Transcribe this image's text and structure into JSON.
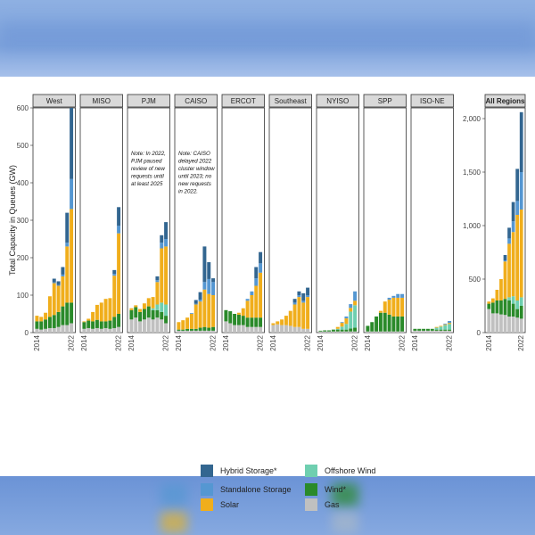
{
  "chart_data": {
    "type": "bar",
    "stacked": true,
    "ylabel": "Total Capacity in Queues (GW)",
    "x_ticks": [
      "2014",
      "2022"
    ],
    "years": [
      2014,
      2015,
      2016,
      2017,
      2018,
      2019,
      2020,
      2021,
      2022
    ],
    "ylim": [
      0,
      600
    ],
    "yticks": [
      0,
      100,
      200,
      300,
      400,
      500,
      600
    ],
    "ylim_all": [
      0,
      2100
    ],
    "yticks_all": [
      0,
      500,
      1000,
      1500,
      2000
    ],
    "ytick_labels_all": [
      "0",
      "500",
      "1,000",
      "1,500",
      "2,000"
    ],
    "series_names": [
      "Gas",
      "Wind*",
      "Offshore Wind",
      "Solar",
      "Standalone Storage",
      "Hybrid Storage*"
    ],
    "colors": {
      "Gas": "#c0c0c0",
      "Wind*": "#2a8a2a",
      "Offshore Wind": "#6fcfb0",
      "Solar": "#f0ae1c",
      "Standalone Storage": "#5597d2",
      "Hybrid Storage*": "#336690"
    },
    "panels": [
      {
        "title": "West",
        "data": [
          [
            10,
            20,
            0,
            15,
            0,
            0
          ],
          [
            8,
            22,
            0,
            12,
            0,
            0
          ],
          [
            10,
            25,
            0,
            18,
            0,
            0
          ],
          [
            12,
            30,
            0,
            55,
            0,
            0
          ],
          [
            12,
            35,
            0,
            85,
            2,
            10
          ],
          [
            15,
            40,
            0,
            70,
            2,
            10
          ],
          [
            20,
            50,
            0,
            80,
            5,
            20
          ],
          [
            20,
            60,
            0,
            150,
            10,
            80
          ],
          [
            25,
            55,
            0,
            250,
            80,
            190
          ]
        ]
      },
      {
        "title": "MISO",
        "data": [
          [
            10,
            18,
            0,
            2,
            0,
            0
          ],
          [
            12,
            20,
            0,
            5,
            0,
            0
          ],
          [
            10,
            20,
            0,
            25,
            0,
            0
          ],
          [
            12,
            22,
            0,
            40,
            0,
            0
          ],
          [
            10,
            20,
            0,
            50,
            0,
            0
          ],
          [
            12,
            18,
            0,
            60,
            0,
            0
          ],
          [
            10,
            22,
            0,
            60,
            0,
            0
          ],
          [
            12,
            30,
            0,
            110,
            5,
            10
          ],
          [
            15,
            35,
            0,
            215,
            20,
            50
          ]
        ]
      },
      {
        "title": "PJM",
        "data": [
          [
            35,
            25,
            0,
            5,
            0,
            0
          ],
          [
            40,
            28,
            0,
            5,
            0,
            0
          ],
          [
            30,
            25,
            0,
            8,
            0,
            0
          ],
          [
            35,
            28,
            0,
            15,
            0,
            0
          ],
          [
            40,
            30,
            0,
            22,
            0,
            0
          ],
          [
            35,
            25,
            5,
            30,
            0,
            0
          ],
          [
            40,
            20,
            15,
            60,
            5,
            10
          ],
          [
            35,
            20,
            25,
            145,
            15,
            20
          ],
          [
            25,
            20,
            30,
            155,
            20,
            45
          ]
        ]
      },
      {
        "title": "CAISO",
        "data": [
          [
            5,
            3,
            0,
            20,
            0,
            0
          ],
          [
            5,
            3,
            0,
            25,
            0,
            0
          ],
          [
            5,
            5,
            0,
            30,
            0,
            0
          ],
          [
            5,
            5,
            0,
            40,
            2,
            0
          ],
          [
            5,
            5,
            0,
            65,
            2,
            10
          ],
          [
            5,
            8,
            0,
            70,
            5,
            20
          ],
          [
            5,
            10,
            0,
            100,
            20,
            95
          ],
          [
            5,
            8,
            0,
            90,
            40,
            45
          ],
          [
            5,
            10,
            0,
            85,
            35,
            10
          ]
        ]
      },
      {
        "title": "ERCOT",
        "data": [
          [
            30,
            30,
            0,
            0,
            0,
            0
          ],
          [
            25,
            32,
            0,
            0,
            0,
            0
          ],
          [
            20,
            30,
            0,
            0,
            0,
            0
          ],
          [
            20,
            28,
            0,
            5,
            0,
            0
          ],
          [
            20,
            25,
            0,
            20,
            0,
            0
          ],
          [
            15,
            25,
            0,
            45,
            5,
            0
          ],
          [
            15,
            25,
            0,
            60,
            10,
            0
          ],
          [
            15,
            25,
            0,
            85,
            20,
            30
          ],
          [
            15,
            25,
            0,
            120,
            25,
            30
          ]
        ]
      },
      {
        "title": "Southeast",
        "data": [
          [
            20,
            0,
            0,
            5,
            0,
            0
          ],
          [
            22,
            0,
            0,
            8,
            0,
            0
          ],
          [
            20,
            0,
            0,
            15,
            0,
            0
          ],
          [
            20,
            0,
            0,
            25,
            0,
            0
          ],
          [
            18,
            0,
            0,
            40,
            0,
            0
          ],
          [
            15,
            0,
            0,
            60,
            5,
            10
          ],
          [
            15,
            0,
            0,
            80,
            5,
            10
          ],
          [
            10,
            0,
            0,
            70,
            5,
            20
          ],
          [
            10,
            0,
            0,
            85,
            5,
            20
          ]
        ]
      },
      {
        "title": "NYISO",
        "data": [
          [
            3,
            2,
            0,
            0,
            0,
            0
          ],
          [
            3,
            3,
            0,
            0,
            0,
            0
          ],
          [
            3,
            3,
            0,
            0,
            0,
            0
          ],
          [
            3,
            5,
            0,
            0,
            0,
            0
          ],
          [
            3,
            5,
            2,
            5,
            0,
            0
          ],
          [
            3,
            5,
            8,
            10,
            2,
            0
          ],
          [
            3,
            5,
            15,
            15,
            5,
            0
          ],
          [
            3,
            8,
            45,
            10,
            10,
            0
          ],
          [
            3,
            10,
            60,
            12,
            25,
            0
          ]
        ]
      },
      {
        "title": "SPP",
        "data": [
          [
            3,
            15,
            0,
            0,
            0,
            0
          ],
          [
            3,
            25,
            0,
            0,
            0,
            0
          ],
          [
            3,
            40,
            0,
            0,
            0,
            0
          ],
          [
            3,
            50,
            0,
            5,
            0,
            0
          ],
          [
            3,
            50,
            0,
            30,
            0,
            0
          ],
          [
            3,
            45,
            0,
            40,
            5,
            0
          ],
          [
            3,
            40,
            0,
            50,
            5,
            0
          ],
          [
            3,
            40,
            0,
            50,
            10,
            0
          ],
          [
            3,
            40,
            0,
            50,
            10,
            0
          ]
        ]
      },
      {
        "title": "ISO-NE",
        "data": [
          [
            5,
            5,
            0,
            0,
            0,
            0
          ],
          [
            5,
            5,
            0,
            0,
            0,
            0
          ],
          [
            5,
            5,
            0,
            0,
            0,
            0
          ],
          [
            5,
            5,
            0,
            0,
            0,
            0
          ],
          [
            5,
            5,
            0,
            0,
            0,
            0
          ],
          [
            5,
            3,
            5,
            2,
            0,
            0
          ],
          [
            5,
            3,
            8,
            2,
            0,
            0
          ],
          [
            5,
            3,
            12,
            2,
            2,
            0
          ],
          [
            5,
            3,
            15,
            3,
            5,
            0
          ]
        ]
      }
    ],
    "all_regions": {
      "title": "All Regions",
      "data": [
        [
          220,
          50,
          0,
          20,
          0,
          0
        ],
        [
          180,
          100,
          0,
          40,
          0,
          0
        ],
        [
          180,
          120,
          0,
          100,
          0,
          0
        ],
        [
          170,
          130,
          0,
          200,
          0,
          0
        ],
        [
          165,
          150,
          0,
          350,
          10,
          50
        ],
        [
          150,
          150,
          30,
          500,
          50,
          100
        ],
        [
          150,
          120,
          70,
          600,
          100,
          180
        ],
        [
          140,
          80,
          80,
          800,
          130,
          300
        ],
        [
          130,
          120,
          80,
          820,
          350,
          560
        ]
      ]
    },
    "annotations": [
      {
        "panel": "PJM",
        "lines": [
          "Note: In 2022,",
          "PJM paused",
          "review of new",
          "requests until",
          "at least 2025"
        ]
      },
      {
        "panel": "CAISO",
        "lines": [
          "Note: CAISO",
          "delayed 2022",
          "cluster window",
          "until 2023; no",
          "new requests",
          "in 2022."
        ]
      }
    ],
    "legend": [
      {
        "label": "Hybrid Storage*",
        "key": "Hybrid Storage*"
      },
      {
        "label": "Standalone Storage",
        "key": "Standalone Storage"
      },
      {
        "label": "Solar",
        "key": "Solar"
      },
      {
        "label": "Offshore Wind",
        "key": "Offshore Wind"
      },
      {
        "label": "Wind*",
        "key": "Wind*"
      },
      {
        "label": "Gas",
        "key": "Gas"
      }
    ]
  }
}
